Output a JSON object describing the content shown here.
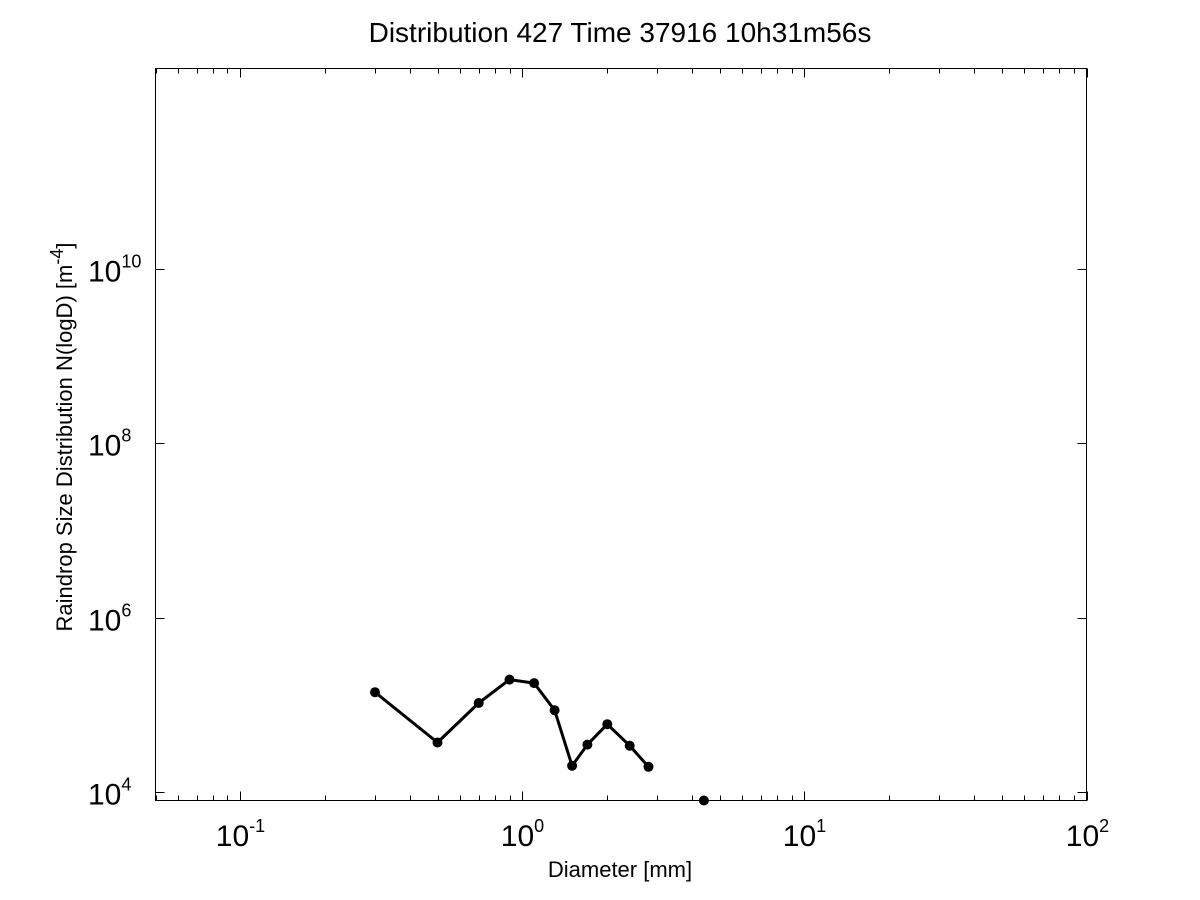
{
  "chart_data": {
    "type": "line",
    "title": "Distribution 427 Time 37916 10h31m56s",
    "xlabel": "Diameter [mm]",
    "ylabel": "Raindrop Size Distribution N(logD) [m",
    "ylabel_exponent": "-4",
    "ylabel_suffix": "]",
    "x_scale": "log",
    "y_scale": "log",
    "xlim": [
      0.05,
      100
    ],
    "ylim": [
      8000,
      2000000000000.0
    ],
    "grid": false,
    "x_ticks": [
      {
        "value": 0.1,
        "base": "10",
        "exponent": "-1"
      },
      {
        "value": 1,
        "base": "10",
        "exponent": "0"
      },
      {
        "value": 10,
        "base": "10",
        "exponent": "1"
      },
      {
        "value": 100,
        "base": "10",
        "exponent": "2"
      }
    ],
    "y_ticks": [
      {
        "value": 10000,
        "base": "10",
        "exponent": "4"
      },
      {
        "value": 1000000,
        "base": "10",
        "exponent": "6"
      },
      {
        "value": 100000000,
        "base": "10",
        "exponent": "8"
      },
      {
        "value": 10000000000,
        "base": "10",
        "exponent": "10"
      }
    ],
    "line_color": "#000000",
    "series": [
      {
        "connected": true,
        "x": [
          0.3,
          0.5,
          0.7,
          0.9,
          1.1,
          1.3,
          1.5,
          1.7,
          2.0,
          2.4,
          2.8
        ],
        "y": [
          140000,
          37000,
          105000,
          195000,
          178000,
          87000,
          20000,
          35000,
          60000,
          34000,
          19500
        ]
      },
      {
        "connected": false,
        "x": [
          4.4
        ],
        "y": [
          8000
        ]
      }
    ]
  }
}
